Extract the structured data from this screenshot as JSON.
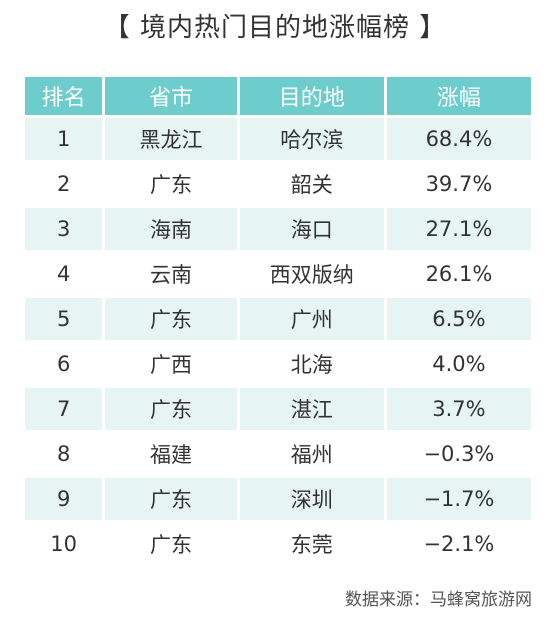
{
  "title": "【 境内热门目的地涨幅榜 】",
  "chart_data": {
    "type": "table",
    "columns": [
      "排名",
      "省市",
      "目的地",
      "涨幅"
    ],
    "rows": [
      [
        "1",
        "黑龙江",
        "哈尔滨",
        "68.4%"
      ],
      [
        "2",
        "广东",
        "韶关",
        "39.7%"
      ],
      [
        "3",
        "海南",
        "海口",
        "27.1%"
      ],
      [
        "4",
        "云南",
        "西双版纳",
        "26.1%"
      ],
      [
        "5",
        "广东",
        "广州",
        "6.5%"
      ],
      [
        "6",
        "广西",
        "北海",
        "4.0%"
      ],
      [
        "7",
        "广东",
        "湛江",
        "3.7%"
      ],
      [
        "8",
        "福建",
        "福州",
        "−0.3%"
      ],
      [
        "9",
        "广东",
        "深圳",
        "−1.7%"
      ],
      [
        "10",
        "广东",
        "东莞",
        "−2.1%"
      ]
    ]
  },
  "source": "数据来源：马蜂窝旅游网",
  "colors": {
    "header": "#6dcccc",
    "stripe": "#e6f4f4"
  }
}
